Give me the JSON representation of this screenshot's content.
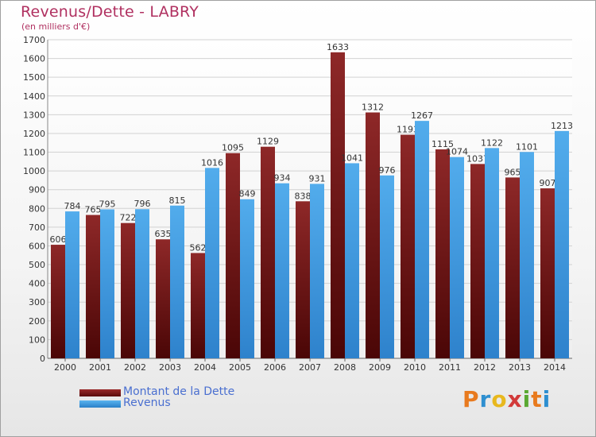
{
  "header": {
    "title": "Revenus/Dette - LABRY",
    "subtitle": "(en milliers d'€)"
  },
  "logo": {
    "letters": [
      "P",
      "r",
      "o",
      "x",
      "i",
      "t",
      "i"
    ],
    "colors": [
      "#e87a1e",
      "#2e8fd0",
      "#e8b81e",
      "#d23a3a",
      "#5aa832",
      "#e87a1e",
      "#2e8fd0"
    ]
  },
  "chart_data": {
    "type": "bar",
    "title": "Revenus/Dette - LABRY",
    "ylim": [
      0,
      1700
    ],
    "yticks": [
      0,
      100,
      200,
      300,
      400,
      500,
      600,
      700,
      800,
      900,
      1000,
      1100,
      1200,
      1300,
      1400,
      1500,
      1600,
      1700
    ],
    "categories": [
      "2000",
      "2001",
      "2002",
      "2003",
      "2004",
      "2005",
      "2006",
      "2007",
      "2008",
      "2009",
      "2010",
      "2011",
      "2012",
      "2013",
      "2014"
    ],
    "grid": true,
    "legend_position": "bottom-left",
    "series": [
      {
        "name": "Montant de la Dette",
        "color": "#7a1a1a",
        "values": [
          606,
          765,
          722,
          635,
          562,
          1095,
          1129,
          838,
          1633,
          1312,
          1193,
          1115,
          1037,
          965,
          907
        ]
      },
      {
        "name": "Revenus",
        "color": "#3a9ae0",
        "values": [
          784,
          795,
          796,
          815,
          1016,
          849,
          934,
          931,
          1041,
          976,
          1267,
          1074,
          1122,
          1101,
          1213
        ]
      }
    ]
  }
}
